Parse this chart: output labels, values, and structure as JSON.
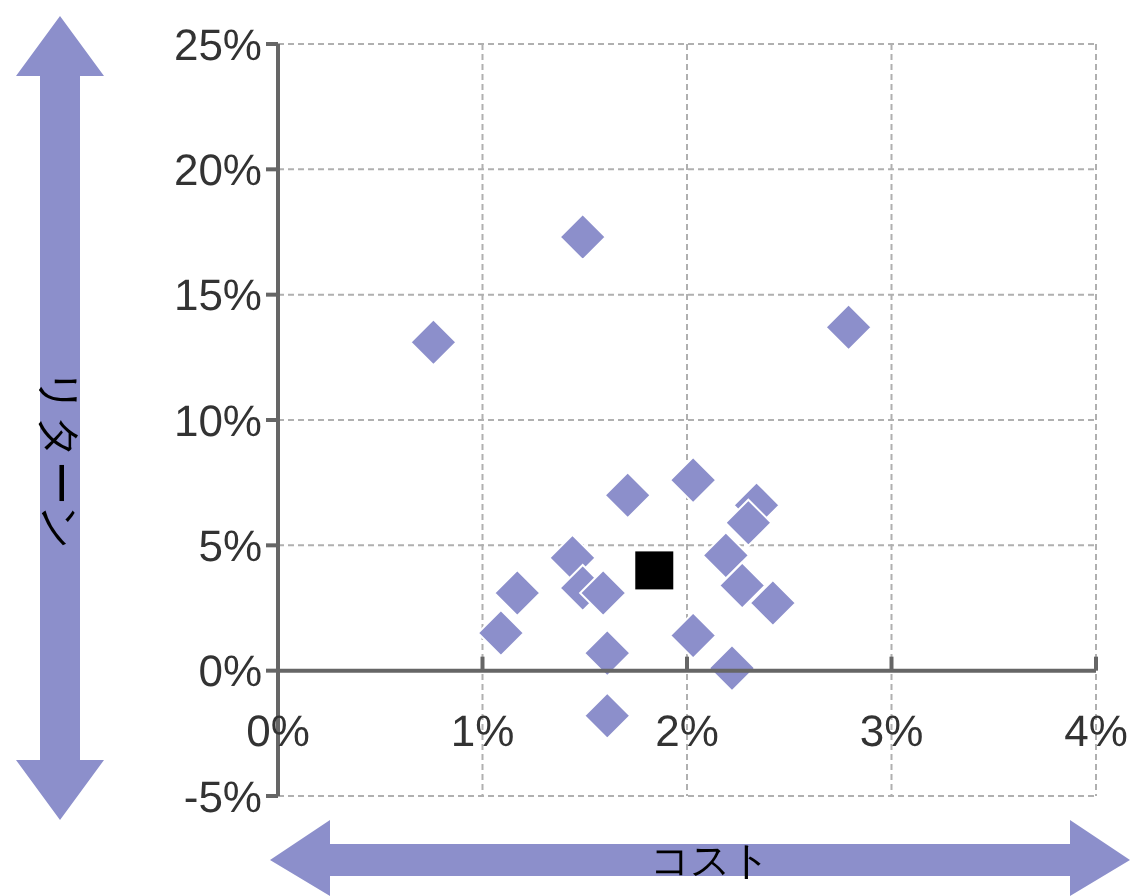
{
  "chart_data": {
    "type": "scatter",
    "xlabel": "コスト",
    "ylabel": "リターン",
    "xlim": [
      0,
      4
    ],
    "xticks": [
      {
        "value": 0,
        "label": "0%"
      },
      {
        "value": 1,
        "label": "1%"
      },
      {
        "value": 2,
        "label": "2%"
      },
      {
        "value": 3,
        "label": "3%"
      },
      {
        "value": 4,
        "label": "4%"
      }
    ],
    "ylim": [
      -5,
      25
    ],
    "yticks": [
      {
        "value": -5,
        "label": "-5%"
      },
      {
        "value": 0,
        "label": "0%"
      },
      {
        "value": 5,
        "label": "5%"
      },
      {
        "value": 10,
        "label": "10%"
      },
      {
        "value": 15,
        "label": "15%"
      },
      {
        "value": 20,
        "label": "20%"
      },
      {
        "value": 25,
        "label": "25%"
      }
    ],
    "grid": true,
    "legend": false,
    "series": [
      {
        "color": "#8c8fcb",
        "marker": "diamond",
        "x": [
          1.49,
          0.76,
          2.79,
          1.71,
          2.03,
          2.34,
          2.3,
          1.44,
          2.19,
          1.17,
          1.49,
          1.59,
          2.27,
          2.42,
          1.09,
          2.03,
          1.61,
          2.22,
          1.61
        ],
        "values": [
          17.3,
          13.1,
          13.7,
          7.0,
          7.6,
          6.6,
          5.9,
          4.5,
          4.6,
          3.1,
          3.3,
          3.1,
          3.4,
          2.7,
          1.5,
          1.4,
          0.7,
          0.1,
          -1.8
        ]
      },
      {
        "color": "#000000",
        "marker": "square",
        "x": [
          1.84
        ],
        "values": [
          4.0
        ]
      }
    ]
  }
}
